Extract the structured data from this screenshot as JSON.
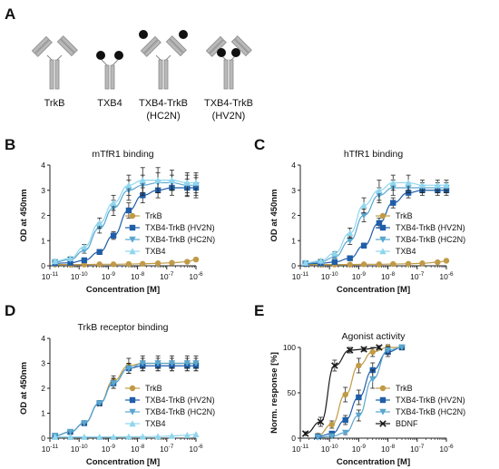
{
  "panel_letters": [
    "A",
    "B",
    "C",
    "D",
    "E"
  ],
  "panel_a": {
    "constructs": [
      {
        "label": "TrkB",
        "label2": ""
      },
      {
        "label": "TXB4",
        "label2": ""
      },
      {
        "label": "TXB4-TrkB",
        "label2": "(HC2N)"
      },
      {
        "label": "TXB4-TrkB",
        "label2": "(HV2N)"
      }
    ]
  },
  "colors": {
    "TrkB": "#c09a46",
    "HV2N": "#1f5ea8",
    "HC2N": "#5aa6cf",
    "TXB4": "#8fd6ee",
    "BDNF": "#1a1a1a",
    "antibody": "#b9b9b9",
    "antibody_edge": "#8a8a8a"
  },
  "chart_data": [
    {
      "panel": "B",
      "type": "line",
      "title": "mTfR1 binding",
      "xlabel": "Concentration [M]",
      "ylabel": "OD at 450nm",
      "xscale": "log",
      "xlim": [
        1e-11,
        1e-06
      ],
      "ylim": [
        0,
        4
      ],
      "yticks": [
        0,
        1,
        2,
        3,
        4
      ],
      "xtick_labels": [
        "10-11",
        "10-10",
        "10-9",
        "10-8",
        "10-7",
        "10-6"
      ],
      "series": [
        {
          "name": "TrkB",
          "key": "TrkB",
          "marker": "circle",
          "x": [
            1.5e-11,
            5e-11,
            1.5e-10,
            5e-10,
            1.5e-09,
            5e-09,
            1.5e-08,
            5e-08,
            1.5e-07,
            5e-07,
            1e-06
          ],
          "y": [
            0.05,
            0.05,
            0.05,
            0.06,
            0.06,
            0.07,
            0.08,
            0.1,
            0.12,
            0.16,
            0.25
          ],
          "err": [
            0,
            0,
            0,
            0,
            0,
            0,
            0,
            0,
            0,
            0,
            0
          ]
        },
        {
          "name": "TXB4-TrkB (HV2N)",
          "key": "HV2N",
          "marker": "square",
          "x": [
            1.5e-11,
            5e-11,
            1.5e-10,
            5e-10,
            1.5e-09,
            5e-09,
            1.5e-08,
            5e-08,
            1.5e-07,
            5e-07,
            1e-06
          ],
          "y": [
            0.1,
            0.12,
            0.22,
            0.55,
            1.2,
            2.2,
            2.8,
            3.0,
            3.1,
            3.1,
            3.1
          ],
          "err": [
            0,
            0,
            0.05,
            0.1,
            0.15,
            0.3,
            0.3,
            0.3,
            0.3,
            0.35,
            0.4
          ]
        },
        {
          "name": "TXB4-TrkB (HC2N)",
          "key": "HC2N",
          "marker": "triangle-down",
          "x": [
            1.5e-11,
            5e-11,
            1.5e-10,
            5e-10,
            1.5e-09,
            5e-09,
            1.5e-08,
            5e-08,
            1.5e-07,
            5e-07,
            1e-06
          ],
          "y": [
            0.15,
            0.25,
            0.6,
            1.5,
            2.3,
            3.0,
            3.2,
            3.3,
            3.3,
            3.2,
            3.2
          ],
          "err": [
            0,
            0.05,
            0.1,
            0.2,
            0.3,
            0.4,
            0.4,
            0.4,
            0.3,
            0.4,
            0.4
          ]
        },
        {
          "name": "TXB4",
          "key": "TXB4",
          "marker": "triangle-up",
          "x": [
            1.5e-11,
            5e-11,
            1.5e-10,
            5e-10,
            1.5e-09,
            5e-09,
            1.5e-08,
            5e-08,
            1.5e-07,
            5e-07,
            1e-06
          ],
          "y": [
            0.18,
            0.3,
            0.75,
            1.7,
            2.5,
            3.2,
            3.4,
            3.4,
            3.4,
            3.3,
            3.3
          ],
          "err": [
            0,
            0.05,
            0.1,
            0.2,
            0.3,
            0.4,
            0.5,
            0.5,
            0.4,
            0.4,
            0.4
          ]
        }
      ]
    },
    {
      "panel": "C",
      "type": "line",
      "title": "hTfR1 binding",
      "xlabel": "Concentration [M]",
      "ylabel": "OD at 450nm",
      "xscale": "log",
      "xlim": [
        1e-11,
        1e-06
      ],
      "ylim": [
        0,
        4
      ],
      "yticks": [
        0,
        1,
        2,
        3,
        4
      ],
      "xtick_labels": [
        "10-11",
        "10-10",
        "10-9",
        "10-8",
        "10-7",
        "10-6"
      ],
      "series": [
        {
          "name": "TrkB",
          "key": "TrkB",
          "marker": "circle",
          "x": [
            1.5e-11,
            5e-11,
            1.5e-10,
            5e-10,
            1.5e-09,
            5e-09,
            1.5e-08,
            5e-08,
            1.5e-07,
            5e-07,
            1e-06
          ],
          "y": [
            0.05,
            0.05,
            0.05,
            0.05,
            0.06,
            0.06,
            0.07,
            0.08,
            0.1,
            0.14,
            0.2
          ],
          "err": [
            0,
            0,
            0,
            0,
            0,
            0,
            0,
            0,
            0,
            0,
            0
          ]
        },
        {
          "name": "TXB4-TrkB (HV2N)",
          "key": "HV2N",
          "marker": "square",
          "x": [
            1.5e-11,
            5e-11,
            1.5e-10,
            5e-10,
            1.5e-09,
            5e-09,
            1.5e-08,
            5e-08,
            1.5e-07,
            5e-07,
            1e-06
          ],
          "y": [
            0.08,
            0.1,
            0.15,
            0.3,
            0.8,
            1.7,
            2.5,
            2.9,
            3.0,
            3.0,
            3.0
          ],
          "err": [
            0,
            0,
            0,
            0.05,
            0.1,
            0.2,
            0.2,
            0.2,
            0.2,
            0.2,
            0.2
          ]
        },
        {
          "name": "TXB4-TrkB (HC2N)",
          "key": "HC2N",
          "marker": "triangle-down",
          "x": [
            1.5e-11,
            5e-11,
            1.5e-10,
            5e-10,
            1.5e-09,
            5e-09,
            1.5e-08,
            5e-08,
            1.5e-07,
            5e-07,
            1e-06
          ],
          "y": [
            0.1,
            0.15,
            0.35,
            1.0,
            2.0,
            2.8,
            3.1,
            3.1,
            3.1,
            3.1,
            3.1
          ],
          "err": [
            0,
            0,
            0.05,
            0.15,
            0.25,
            0.3,
            0.3,
            0.2,
            0.2,
            0.2,
            0.2
          ]
        },
        {
          "name": "TXB4",
          "key": "TXB4",
          "marker": "triangle-up",
          "x": [
            1.5e-11,
            5e-11,
            1.5e-10,
            5e-10,
            1.5e-09,
            5e-09,
            1.5e-08,
            5e-08,
            1.5e-07,
            5e-07,
            1e-06
          ],
          "y": [
            0.12,
            0.2,
            0.5,
            1.3,
            2.4,
            3.0,
            3.3,
            3.3,
            3.2,
            3.2,
            3.2
          ],
          "err": [
            0,
            0.05,
            0.05,
            0.2,
            0.3,
            0.4,
            0.3,
            0.3,
            0.2,
            0.2,
            0.2
          ]
        }
      ]
    },
    {
      "panel": "D",
      "type": "line",
      "title": "TrkB receptor binding",
      "xlabel": "Concentration [M]",
      "ylabel": "OD at 450nm",
      "xscale": "log",
      "xlim": [
        1e-11,
        1e-06
      ],
      "ylim": [
        0,
        4
      ],
      "yticks": [
        0,
        1,
        2,
        3,
        4
      ],
      "xtick_labels": [
        "10-11",
        "10-10",
        "10-9",
        "10-8",
        "10-7",
        "10-6"
      ],
      "series": [
        {
          "name": "TrkB",
          "key": "TrkB",
          "marker": "circle",
          "x": [
            1.5e-11,
            5e-11,
            1.5e-10,
            5e-10,
            1.5e-09,
            5e-09,
            1.5e-08,
            5e-08,
            1.5e-07,
            5e-07,
            1e-06
          ],
          "y": [
            0.1,
            0.25,
            0.6,
            1.4,
            2.3,
            2.9,
            3.0,
            3.0,
            3.0,
            3.0,
            3.0
          ],
          "err": [
            0,
            0.03,
            0.05,
            0.1,
            0.2,
            0.3,
            0.3,
            0.3,
            0.3,
            0.3,
            0.3
          ]
        },
        {
          "name": "TXB4-TrkB (HV2N)",
          "key": "HV2N",
          "marker": "square",
          "x": [
            1.5e-11,
            5e-11,
            1.5e-10,
            5e-10,
            1.5e-09,
            5e-09,
            1.5e-08,
            5e-08,
            1.5e-07,
            5e-07,
            1e-06
          ],
          "y": [
            0.1,
            0.25,
            0.6,
            1.4,
            2.2,
            2.8,
            2.9,
            2.9,
            2.9,
            2.9,
            2.9
          ],
          "err": [
            0,
            0.03,
            0.05,
            0.1,
            0.2,
            0.2,
            0.2,
            0.2,
            0.2,
            0.2,
            0.2
          ]
        },
        {
          "name": "TXB4-TrkB (HC2N)",
          "key": "HC2N",
          "marker": "triangle-down",
          "x": [
            1.5e-11,
            5e-11,
            1.5e-10,
            5e-10,
            1.5e-09,
            5e-09,
            1.5e-08,
            5e-08,
            1.5e-07,
            5e-07,
            1e-06
          ],
          "y": [
            0.1,
            0.25,
            0.6,
            1.4,
            2.2,
            2.8,
            3.0,
            3.0,
            3.0,
            3.0,
            3.0
          ],
          "err": [
            0,
            0.03,
            0.05,
            0.1,
            0.2,
            0.2,
            0.2,
            0.2,
            0.2,
            0.2,
            0.2
          ]
        },
        {
          "name": "TXB4",
          "key": "TXB4",
          "marker": "triangle-up",
          "x": [
            1.5e-11,
            5e-11,
            1.5e-10,
            5e-10,
            1.5e-09,
            5e-09,
            1.5e-08,
            5e-08,
            1.5e-07,
            5e-07,
            1e-06
          ],
          "y": [
            0.05,
            0.05,
            0.05,
            0.05,
            0.05,
            0.06,
            0.06,
            0.07,
            0.09,
            0.12,
            0.15
          ],
          "err": [
            0,
            0,
            0,
            0,
            0,
            0,
            0,
            0,
            0,
            0,
            0
          ]
        }
      ]
    },
    {
      "panel": "E",
      "type": "line",
      "title": "Agonist activity",
      "xlabel": "Concentration [M]",
      "ylabel": "Norm. response [%]",
      "xscale": "log",
      "xlim": [
        1e-11,
        1e-06
      ],
      "ylim": [
        0,
        100
      ],
      "yticks": [
        0,
        50,
        100
      ],
      "xtick_labels": [
        "10-11",
        "10-10",
        "10-9",
        "10-8",
        "10-7",
        "10-6"
      ],
      "series": [
        {
          "name": "TrkB",
          "key": "TrkB",
          "marker": "circle",
          "x": [
            4e-11,
            1.2e-10,
            3.5e-10,
            1e-09,
            3e-09,
            1e-08,
            3e-08
          ],
          "y": [
            3,
            15,
            48,
            80,
            95,
            100,
            100
          ],
          "err": [
            2,
            4,
            8,
            8,
            5,
            3,
            2
          ]
        },
        {
          "name": "TXB4-TrkB (HV2N)",
          "key": "HV2N",
          "marker": "square",
          "x": [
            4e-11,
            1.2e-10,
            3.5e-10,
            1e-09,
            3e-09,
            1e-08,
            3e-08
          ],
          "y": [
            2,
            5,
            20,
            45,
            75,
            95,
            100
          ],
          "err": [
            1,
            2,
            5,
            8,
            8,
            5,
            2
          ]
        },
        {
          "name": "TXB4-TrkB (HC2N)",
          "key": "HC2N",
          "marker": "triangle-down",
          "x": [
            4e-11,
            1.2e-10,
            3.5e-10,
            1e-09,
            3e-09,
            1e-08,
            3e-08
          ],
          "y": [
            1,
            2,
            6,
            25,
            65,
            97,
            100
          ],
          "err": [
            1,
            1,
            2,
            6,
            10,
            4,
            2
          ]
        },
        {
          "name": "BDNF",
          "key": "BDNF",
          "marker": "x",
          "x": [
            1.5e-11,
            5e-11,
            1.5e-10,
            5e-10,
            1.5e-09,
            5e-09
          ],
          "y": [
            5,
            18,
            80,
            97,
            98,
            100
          ],
          "err": [
            2,
            5,
            6,
            3,
            2,
            2
          ]
        }
      ]
    }
  ]
}
